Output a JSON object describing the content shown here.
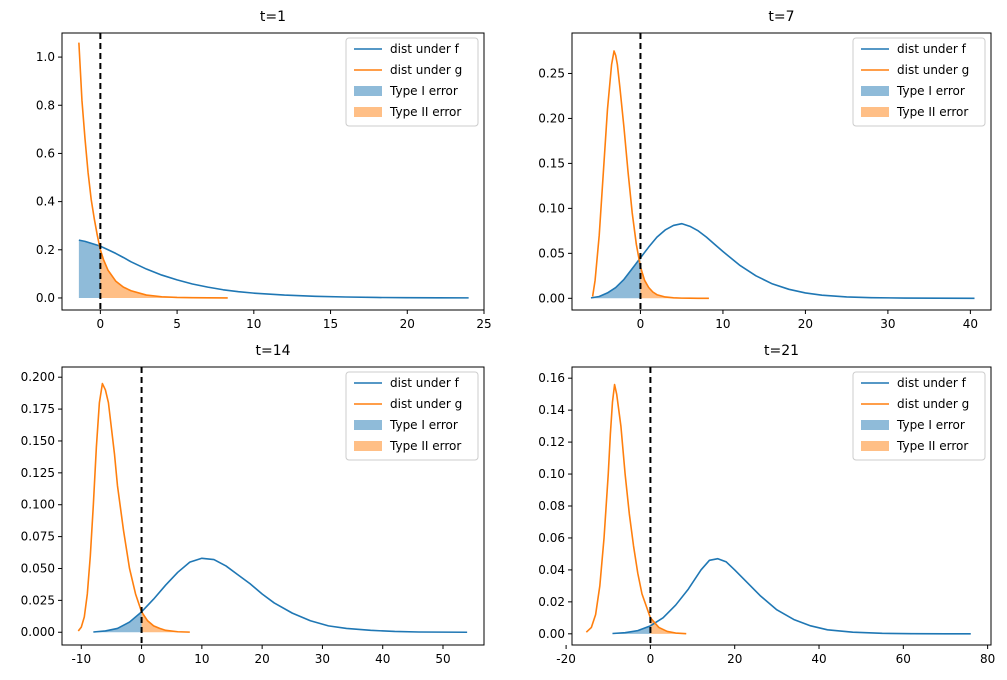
{
  "colors": {
    "f": "#1f77b4",
    "g": "#ff7f0e",
    "typeI": "#1f77b4",
    "typeII": "#ff7f0e"
  },
  "legend": [
    "dist under f",
    "dist under g",
    "Type I error",
    "Type II error"
  ],
  "chart_data": [
    {
      "type": "line",
      "title": "t=1",
      "xlim": [
        -2.5,
        25
      ],
      "ylim": [
        -0.05,
        1.1
      ],
      "xticks": [
        0,
        5,
        10,
        15,
        20,
        25
      ],
      "yticks": [
        0.0,
        0.2,
        0.4,
        0.6,
        0.8,
        1.0
      ],
      "ytick_labels": [
        "0.0",
        "0.2",
        "0.4",
        "0.6",
        "0.8",
        "1.0"
      ],
      "threshold": 0,
      "series": [
        {
          "name": "dist under f",
          "x": [
            -1.4,
            -1.0,
            -0.5,
            0,
            0.5,
            1,
            1.5,
            2,
            3,
            4,
            5,
            6,
            7,
            8,
            9,
            10,
            12,
            14,
            16,
            18,
            20,
            22,
            24
          ],
          "y": [
            0.24,
            0.235,
            0.225,
            0.215,
            0.2,
            0.185,
            0.168,
            0.15,
            0.12,
            0.095,
            0.075,
            0.058,
            0.045,
            0.034,
            0.026,
            0.02,
            0.012,
            0.007,
            0.004,
            0.002,
            0.001,
            0.0005,
            0.0003
          ]
        },
        {
          "name": "dist under g",
          "x": [
            -1.4,
            -1.2,
            -1.0,
            -0.8,
            -0.6,
            -0.4,
            -0.2,
            0,
            0.2,
            0.5,
            1,
            1.5,
            2,
            3,
            4,
            5,
            6,
            7,
            8.3
          ],
          "y": [
            1.06,
            0.82,
            0.66,
            0.52,
            0.41,
            0.33,
            0.26,
            0.2,
            0.16,
            0.115,
            0.07,
            0.045,
            0.03,
            0.012,
            0.005,
            0.002,
            0.001,
            0.0005,
            0.0002
          ]
        }
      ]
    },
    {
      "type": "line",
      "title": "t=7",
      "xlim": [
        -8.3,
        42.5
      ],
      "ylim": [
        -0.013,
        0.295
      ],
      "xticks": [
        0,
        10,
        20,
        30,
        40
      ],
      "yticks": [
        0.0,
        0.05,
        0.1,
        0.15,
        0.2,
        0.25
      ],
      "ytick_labels": [
        "0.00",
        "0.05",
        "0.10",
        "0.15",
        "0.20",
        "0.25"
      ],
      "threshold": 0,
      "series": [
        {
          "name": "dist under f",
          "x": [
            -6,
            -5,
            -4,
            -3,
            -2,
            -1,
            0,
            1,
            2,
            3,
            4,
            5,
            6,
            7,
            8,
            9,
            10,
            12,
            14,
            16,
            18,
            20,
            22,
            25,
            28,
            32,
            36,
            40.5
          ],
          "y": [
            0.0005,
            0.002,
            0.006,
            0.012,
            0.021,
            0.033,
            0.045,
            0.057,
            0.068,
            0.076,
            0.081,
            0.083,
            0.08,
            0.075,
            0.068,
            0.06,
            0.052,
            0.037,
            0.025,
            0.016,
            0.01,
            0.006,
            0.0035,
            0.0015,
            0.0007,
            0.0003,
            0.0001,
            0.0
          ]
        },
        {
          "name": "dist under g",
          "x": [
            -5.8,
            -5.5,
            -5,
            -4.5,
            -4,
            -3.5,
            -3.2,
            -3,
            -2.8,
            -2.5,
            -2,
            -1.5,
            -1,
            -0.5,
            0,
            0.5,
            1,
            1.5,
            2,
            3,
            4,
            5,
            6,
            7,
            8.3
          ],
          "y": [
            0.002,
            0.02,
            0.07,
            0.14,
            0.21,
            0.26,
            0.275,
            0.27,
            0.26,
            0.235,
            0.19,
            0.14,
            0.095,
            0.06,
            0.035,
            0.02,
            0.012,
            0.007,
            0.004,
            0.0015,
            0.0006,
            0.0002,
            0.0001,
            0.0,
            0.0
          ]
        }
      ]
    },
    {
      "type": "line",
      "title": "t=14",
      "xlim": [
        -13.2,
        56.8
      ],
      "ylim": [
        -0.01,
        0.208
      ],
      "xticks": [
        -10,
        0,
        10,
        20,
        30,
        40,
        50
      ],
      "yticks": [
        0.0,
        0.025,
        0.05,
        0.075,
        0.1,
        0.125,
        0.15,
        0.175,
        0.2
      ],
      "ytick_labels": [
        "0.000",
        "0.025",
        "0.050",
        "0.075",
        "0.100",
        "0.125",
        "0.150",
        "0.175",
        "0.200"
      ],
      "threshold": 0,
      "series": [
        {
          "name": "dist under f",
          "x": [
            -8,
            -6,
            -4,
            -2,
            0,
            2,
            4,
            6,
            8,
            10,
            12,
            14,
            16,
            18,
            20,
            22,
            25,
            28,
            31,
            34,
            38,
            42,
            46,
            50,
            54
          ],
          "y": [
            0.0002,
            0.001,
            0.003,
            0.008,
            0.016,
            0.026,
            0.037,
            0.047,
            0.055,
            0.058,
            0.057,
            0.052,
            0.045,
            0.038,
            0.03,
            0.023,
            0.015,
            0.009,
            0.005,
            0.003,
            0.0015,
            0.0006,
            0.0002,
            0.0001,
            0.0
          ]
        },
        {
          "name": "dist under g",
          "x": [
            -10.5,
            -10,
            -9.5,
            -9,
            -8.5,
            -8,
            -7.5,
            -7,
            -6.5,
            -6,
            -5.5,
            -5,
            -4.5,
            -4,
            -3,
            -2,
            -1,
            0,
            1,
            2,
            3,
            4,
            6,
            8
          ],
          "y": [
            0.001,
            0.004,
            0.012,
            0.03,
            0.06,
            0.1,
            0.145,
            0.18,
            0.195,
            0.19,
            0.18,
            0.16,
            0.14,
            0.115,
            0.08,
            0.05,
            0.03,
            0.016,
            0.009,
            0.005,
            0.003,
            0.0015,
            0.0004,
            0.0001
          ]
        }
      ]
    },
    {
      "type": "line",
      "title": "t=21",
      "xlim": [
        -18.6,
        80.8
      ],
      "ylim": [
        -0.007,
        0.167
      ],
      "xticks": [
        -20,
        0,
        20,
        40,
        60,
        80
      ],
      "yticks": [
        0.0,
        0.02,
        0.04,
        0.06,
        0.08,
        0.1,
        0.12,
        0.14,
        0.16
      ],
      "ytick_labels": [
        "0.00",
        "0.02",
        "0.04",
        "0.06",
        "0.08",
        "0.10",
        "0.12",
        "0.14",
        "0.16"
      ],
      "threshold": 0,
      "series": [
        {
          "name": "dist under f",
          "x": [
            -9,
            -6,
            -3,
            0,
            3,
            6,
            9,
            12,
            14,
            16,
            18,
            20,
            23,
            26,
            30,
            34,
            38,
            42,
            48,
            55,
            62,
            70,
            76
          ],
          "y": [
            0.0002,
            0.0007,
            0.002,
            0.005,
            0.01,
            0.018,
            0.028,
            0.04,
            0.046,
            0.047,
            0.045,
            0.04,
            0.032,
            0.024,
            0.015,
            0.009,
            0.005,
            0.0025,
            0.001,
            0.0003,
            0.0001,
            0.0,
            0.0
          ]
        },
        {
          "name": "dist under g",
          "x": [
            -15.2,
            -14,
            -13,
            -12,
            -11,
            -10,
            -9.5,
            -9,
            -8.5,
            -8,
            -7,
            -6,
            -5,
            -4,
            -3,
            -2,
            0,
            2,
            4,
            6,
            8.5
          ],
          "y": [
            0.001,
            0.004,
            0.012,
            0.03,
            0.06,
            0.1,
            0.125,
            0.145,
            0.156,
            0.15,
            0.13,
            0.1,
            0.075,
            0.055,
            0.038,
            0.025,
            0.01,
            0.004,
            0.0015,
            0.0005,
            0.0001
          ]
        }
      ]
    }
  ]
}
